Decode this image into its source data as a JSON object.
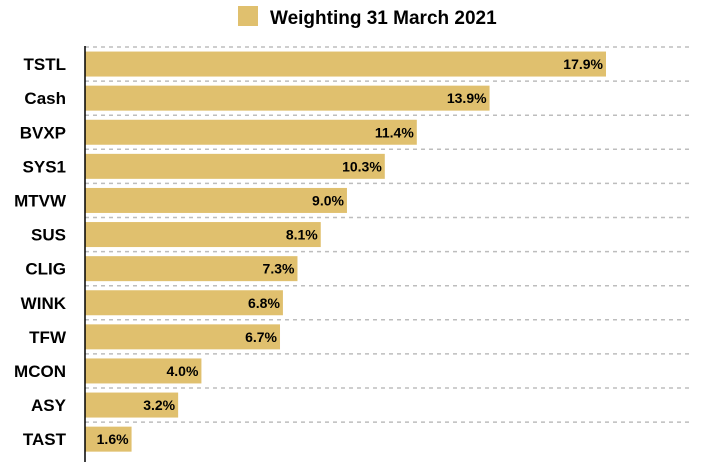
{
  "chart_data": {
    "type": "bar",
    "orientation": "horizontal",
    "categories": [
      "TSTL",
      "Cash",
      "BVXP",
      "SYS1",
      "MTVW",
      "SUS",
      "CLIG",
      "WINK",
      "TFW",
      "MCON",
      "ASY",
      "TAST"
    ],
    "series": [
      {
        "name": "Weighting 31 March 2021",
        "values": [
          17.9,
          13.9,
          11.4,
          10.3,
          9.0,
          8.1,
          7.3,
          6.8,
          6.7,
          4.0,
          3.2,
          1.6
        ],
        "labels": [
          "17.9%",
          "13.9%",
          "11.4%",
          "10.3%",
          "9.0%",
          "8.1%",
          "7.3%",
          "6.8%",
          "6.7%",
          "4.0%",
          "3.2%",
          "1.6%"
        ]
      }
    ],
    "xlim": [
      0,
      20
    ],
    "grid": true,
    "legend_position": "top-center",
    "colors": {
      "bar": "#e0c06e",
      "grid": "#bdbdbd",
      "axis": "#000000",
      "text": "#000000"
    }
  }
}
